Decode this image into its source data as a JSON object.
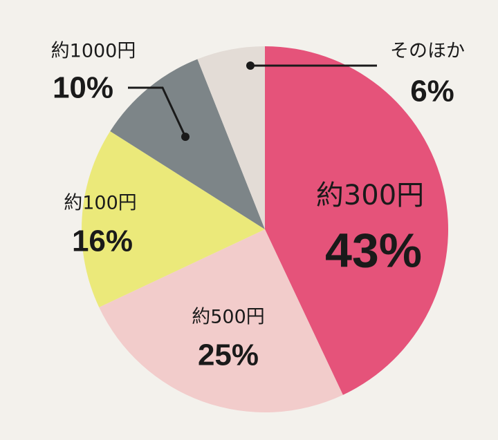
{
  "chart_data": {
    "type": "pie",
    "categories": [
      "約300円",
      "約500円",
      "約100円",
      "約1000円",
      "そのほか"
    ],
    "values": [
      43,
      25,
      16,
      10,
      6
    ],
    "value_labels": [
      "43%",
      "25%",
      "16%",
      "10%",
      "6%"
    ],
    "colors": [
      "#e5537a",
      "#f2cccb",
      "#ebe97a",
      "#7d8588",
      "#e3dcd6"
    ]
  }
}
